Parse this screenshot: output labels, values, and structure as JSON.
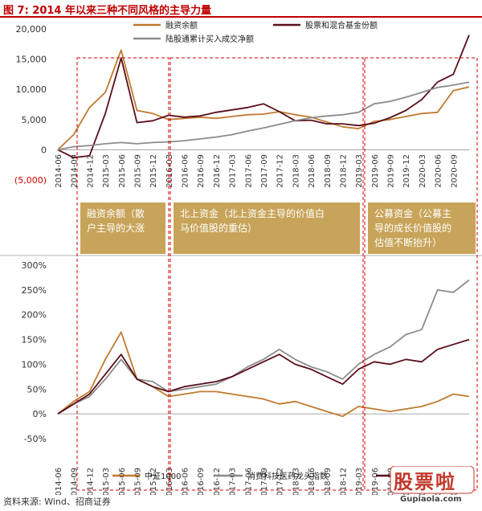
{
  "figure": {
    "title": "图 7:  2014 年以来三种不同风格的主导力量",
    "source": "资料来源: Wind、招商证券",
    "watermark": "股票啦",
    "watermark_url": "Gupiaola.com"
  },
  "colors": {
    "margin": "#c07a30",
    "funds": "#5a0f1a",
    "north": "#8c8c8c",
    "consumer": "#8c8c8c",
    "zz1000": "#c07a30",
    "box_fill": "#c8a45a",
    "dashed": "#d00000"
  },
  "annotations": [
    "融资余额（散户主导的大涨",
    "北上资金（北上资金主导的价值白马价值股的重估）",
    "公募资金（公募主导的成长价值股的估值不断抬升）"
  ],
  "chart_data": [
    {
      "type": "line",
      "x": [
        "2014-06",
        "2014-09",
        "2014-12",
        "2015-03",
        "2015-06",
        "2015-09",
        "2015-12",
        "2016-03",
        "2016-06",
        "2016-09",
        "2016-12",
        "2017-03",
        "2017-06",
        "2017-09",
        "2017-12",
        "2018-03",
        "2018-06",
        "2018-09",
        "2018-12",
        "2019-03",
        "2019-06",
        "2019-09",
        "2019-12",
        "2020-03",
        "2020-06",
        "2020-09",
        "2020-12"
      ],
      "x_tick_labels": [
        "2014-06",
        "2014-09",
        "2014-12",
        "2015-03",
        "2015-06",
        "2015-09",
        "2015-12",
        "2016-03",
        "2016-06",
        "2016-09",
        "2016-12",
        "2017-03",
        "2017-06",
        "2017-09",
        "2017-12",
        "2018-03",
        "2018-06",
        "2018-09",
        "2018-12",
        "2019-03",
        "2019-06",
        "2019-09",
        "2019-12",
        "2020-03",
        "2020-06",
        "2020-09"
      ],
      "y_ticks": [
        "20,000",
        "15,000",
        "10,000",
        "5,000",
        "0",
        "(5,000)"
      ],
      "ylim": [
        -5000,
        20000
      ],
      "series": [
        {
          "name": "融资余额",
          "values": [
            0,
            2500,
            7000,
            9500,
            16500,
            6500,
            6000,
            5000,
            5200,
            5400,
            5200,
            5500,
            5800,
            5900,
            6300,
            5800,
            5400,
            4600,
            3800,
            3500,
            4700,
            5000,
            5500,
            6000,
            6200,
            9800,
            10400
          ]
        },
        {
          "name": "股票和混合基金份额",
          "values": [
            0,
            -1300,
            -1000,
            6000,
            15200,
            4500,
            4800,
            5700,
            5400,
            5600,
            6200,
            6600,
            7000,
            7600,
            6300,
            4800,
            4900,
            4300,
            4300,
            4000,
            4400,
            5300,
            6500,
            8300,
            11200,
            12500,
            19000
          ]
        },
        {
          "name": "陆股通累计买入成交净额",
          "values": [
            0,
            500,
            700,
            1000,
            1200,
            1000,
            1200,
            1300,
            1500,
            1800,
            2100,
            2500,
            3100,
            3600,
            4200,
            4800,
            5300,
            5600,
            5800,
            6200,
            7600,
            8000,
            8700,
            9500,
            10300,
            10700,
            11200
          ]
        }
      ]
    },
    {
      "type": "line",
      "x": [
        "2014-06",
        "2014-09",
        "2014-12",
        "2015-03",
        "2015-06",
        "2015-09",
        "2015-12",
        "2016-03",
        "2016-06",
        "2016-09",
        "2016-12",
        "2017-03",
        "2017-06",
        "2017-09",
        "2017-12",
        "2018-03",
        "2018-06",
        "2018-09",
        "2018-12",
        "2019-03",
        "2019-06",
        "2019-09",
        "2019-12",
        "2020-03",
        "2020-06",
        "2020-09",
        "2020-12"
      ],
      "x_tick_labels": [
        "2014-06",
        "2014-09",
        "2014-12",
        "2015-03",
        "2015-06",
        "2015-09",
        "2015-12",
        "2016-03",
        "2016-06",
        "2016-09",
        "2016-12",
        "2017-03",
        "2017-06",
        "2017-09",
        "2017-12",
        "2018-03",
        "2018-06",
        "2018-09",
        "2018-12",
        "2019-03",
        "2019-06",
        "2019-09",
        "2019-12",
        "2020-03",
        "2020-06",
        "2020-09"
      ],
      "y_ticks": [
        "300%",
        "250%",
        "200%",
        "150%",
        "100%",
        "50%",
        "0%",
        "-50%"
      ],
      "ylim": [
        -50,
        300
      ],
      "series": [
        {
          "name": "中证1000",
          "values": [
            0,
            25,
            45,
            110,
            165,
            70,
            55,
            35,
            40,
            45,
            45,
            40,
            35,
            30,
            20,
            25,
            15,
            5,
            -5,
            15,
            10,
            5,
            10,
            15,
            25,
            40,
            35
          ]
        },
        {
          "name": "消费科技医药龙头指数",
          "values": [
            0,
            20,
            35,
            70,
            110,
            70,
            65,
            45,
            50,
            55,
            60,
            75,
            95,
            110,
            130,
            110,
            95,
            85,
            70,
            100,
            120,
            135,
            160,
            170,
            250,
            245,
            270
          ]
        },
        {
          "name": "中证1000",
          "values": [
            0,
            20,
            40,
            80,
            120,
            70,
            55,
            45,
            55,
            60,
            65,
            75,
            90,
            105,
            120,
            100,
            90,
            75,
            60,
            90,
            105,
            100,
            110,
            105,
            130,
            140,
            150
          ]
        }
      ],
      "legend_labels": [
        "中证1000",
        "消费科技医药龙头指数",
        "中"
      ]
    }
  ]
}
